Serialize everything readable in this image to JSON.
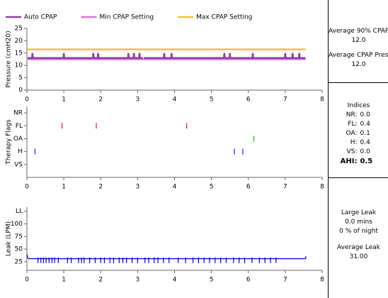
{
  "chart_data": [
    {
      "type": "line",
      "y_label": "Pressure (cmH20)",
      "xlim": [
        0,
        8
      ],
      "xticks": [
        0,
        1,
        2,
        3,
        4,
        5,
        6,
        7,
        8
      ],
      "ylim": [
        0,
        25
      ],
      "yticks": [
        0,
        5,
        10,
        15,
        20,
        25
      ],
      "series": [
        {
          "name": "Auto CPAP",
          "color": "#8a3fa6",
          "x": [
            0.02,
            0.14,
            0.15,
            0.16,
            0.99,
            1.0,
            1.01,
            1.79,
            1.8,
            1.81,
            1.92,
            1.93,
            1.94,
            2.74,
            2.75,
            2.76,
            2.89,
            2.9,
            2.91,
            3.04,
            3.05,
            3.06,
            3.14,
            3.15,
            3.17,
            3.71,
            3.72,
            3.73,
            3.91,
            3.92,
            3.93,
            5.34,
            5.35,
            5.36,
            5.49,
            5.5,
            5.51,
            6.11,
            6.12,
            6.13,
            6.99,
            7.0,
            7.01,
            7.19,
            7.2,
            7.21,
            7.37,
            7.38,
            7.39,
            7.55
          ],
          "values": [
            13,
            13,
            15,
            13,
            13,
            15,
            13,
            13,
            15,
            13,
            13,
            15,
            13,
            13,
            15,
            13,
            13,
            15,
            13,
            13,
            15,
            13,
            13,
            null,
            13,
            13,
            15,
            13,
            13,
            15,
            13,
            13,
            15,
            13,
            13,
            15,
            13,
            13,
            15,
            13,
            13,
            15,
            13,
            13,
            15,
            13,
            13,
            15,
            13,
            13
          ]
        },
        {
          "name": "Min CPAP Setting",
          "color": "#e070e0",
          "x": [
            0.02,
            7.55
          ],
          "values": [
            12.5,
            12.5
          ]
        },
        {
          "name": "Max CPAP Setting",
          "color": "#f0c040",
          "x": [
            0.02,
            7.55
          ],
          "values": [
            16.5,
            16.5
          ]
        }
      ]
    },
    {
      "type": "scatter",
      "y_label": "Therapy Flags",
      "xlim": [
        0,
        8
      ],
      "xticks": [
        0,
        1,
        2,
        3,
        4,
        5,
        6,
        7,
        8
      ],
      "ylim": [
        0,
        5.5
      ],
      "yticks": [
        {
          "value": 1,
          "label": "VS"
        },
        {
          "value": 2,
          "label": "H"
        },
        {
          "value": 3,
          "label": "OA"
        },
        {
          "value": 4,
          "label": "FL"
        },
        {
          "value": 5,
          "label": "NR"
        }
      ],
      "series": [
        {
          "color": "#d02020",
          "mark": "dash",
          "x": [
            0.95,
            1.88,
            4.33
          ],
          "values": [
            4,
            4,
            4
          ]
        },
        {
          "color": "#20a020",
          "mark": "dash",
          "x": [
            6.15
          ],
          "values": [
            3
          ]
        },
        {
          "color": "#2020d0",
          "mark": "dash",
          "x": [
            0.22,
            5.62,
            5.85
          ],
          "values": [
            2,
            2,
            2
          ]
        }
      ]
    },
    {
      "type": "line",
      "y_label": "Leak (LPM)",
      "xlim": [
        0,
        8
      ],
      "xticks": [
        0,
        1,
        2,
        3,
        4,
        5,
        6,
        7,
        8
      ],
      "ylim": [
        8,
        133
      ],
      "yticks": [
        25,
        50,
        75,
        100,
        {
          "value": 125,
          "label": "LL"
        }
      ],
      "series": [
        {
          "color": "#0000c8",
          "x": [
            0.0,
            0.02,
            0.05,
            7.5,
            7.55,
            7.56
          ],
          "values": [
            40,
            33,
            31,
            31,
            31,
            36
          ]
        },
        {
          "color": "#0000a0",
          "mark": "dash",
          "x": [
            0.3,
            0.38,
            0.45,
            0.52,
            0.6,
            0.68,
            0.75,
            0.85,
            1.1,
            1.2,
            1.4,
            1.48,
            1.55,
            1.7,
            1.85,
            2.0,
            2.1,
            2.25,
            2.35,
            2.5,
            2.6,
            2.7,
            2.85,
            3.0,
            3.2,
            3.3,
            3.45,
            3.55,
            3.7,
            3.85,
            4.1,
            4.3,
            4.5,
            4.65,
            4.8,
            4.95,
            5.1,
            5.25,
            5.4,
            5.6,
            5.75,
            5.9,
            6.1,
            6.3,
            6.45,
            6.6,
            6.75
          ],
          "values": [
            28,
            28,
            28,
            28,
            28,
            28,
            28,
            28,
            28,
            28,
            28,
            28,
            28,
            28,
            28,
            28,
            28,
            28,
            28,
            28,
            28,
            28,
            28,
            28,
            28,
            28,
            28,
            28,
            28,
            28,
            28,
            28,
            28,
            28,
            28,
            28,
            28,
            28,
            28,
            28,
            28,
            28,
            28,
            28,
            28,
            28,
            28
          ]
        }
      ]
    }
  ],
  "summary": {
    "pressure": [
      "Average 90% CPAP",
      "12.0",
      "Average CPAP Press",
      "12.0"
    ],
    "indices": {
      "title": "Indices",
      "rows": [
        [
          "NR:",
          "0.0"
        ],
        [
          "FL:",
          "0.4"
        ],
        [
          "OA:",
          "0.1"
        ],
        [
          "H:",
          "0.4"
        ],
        [
          "VS:",
          "0.0"
        ],
        [
          "AHI:",
          "0.5"
        ]
      ]
    },
    "leak": [
      "Large Leak",
      "0.0 mins",
      "0 % of night",
      "Average Leak",
      "31.00"
    ]
  }
}
